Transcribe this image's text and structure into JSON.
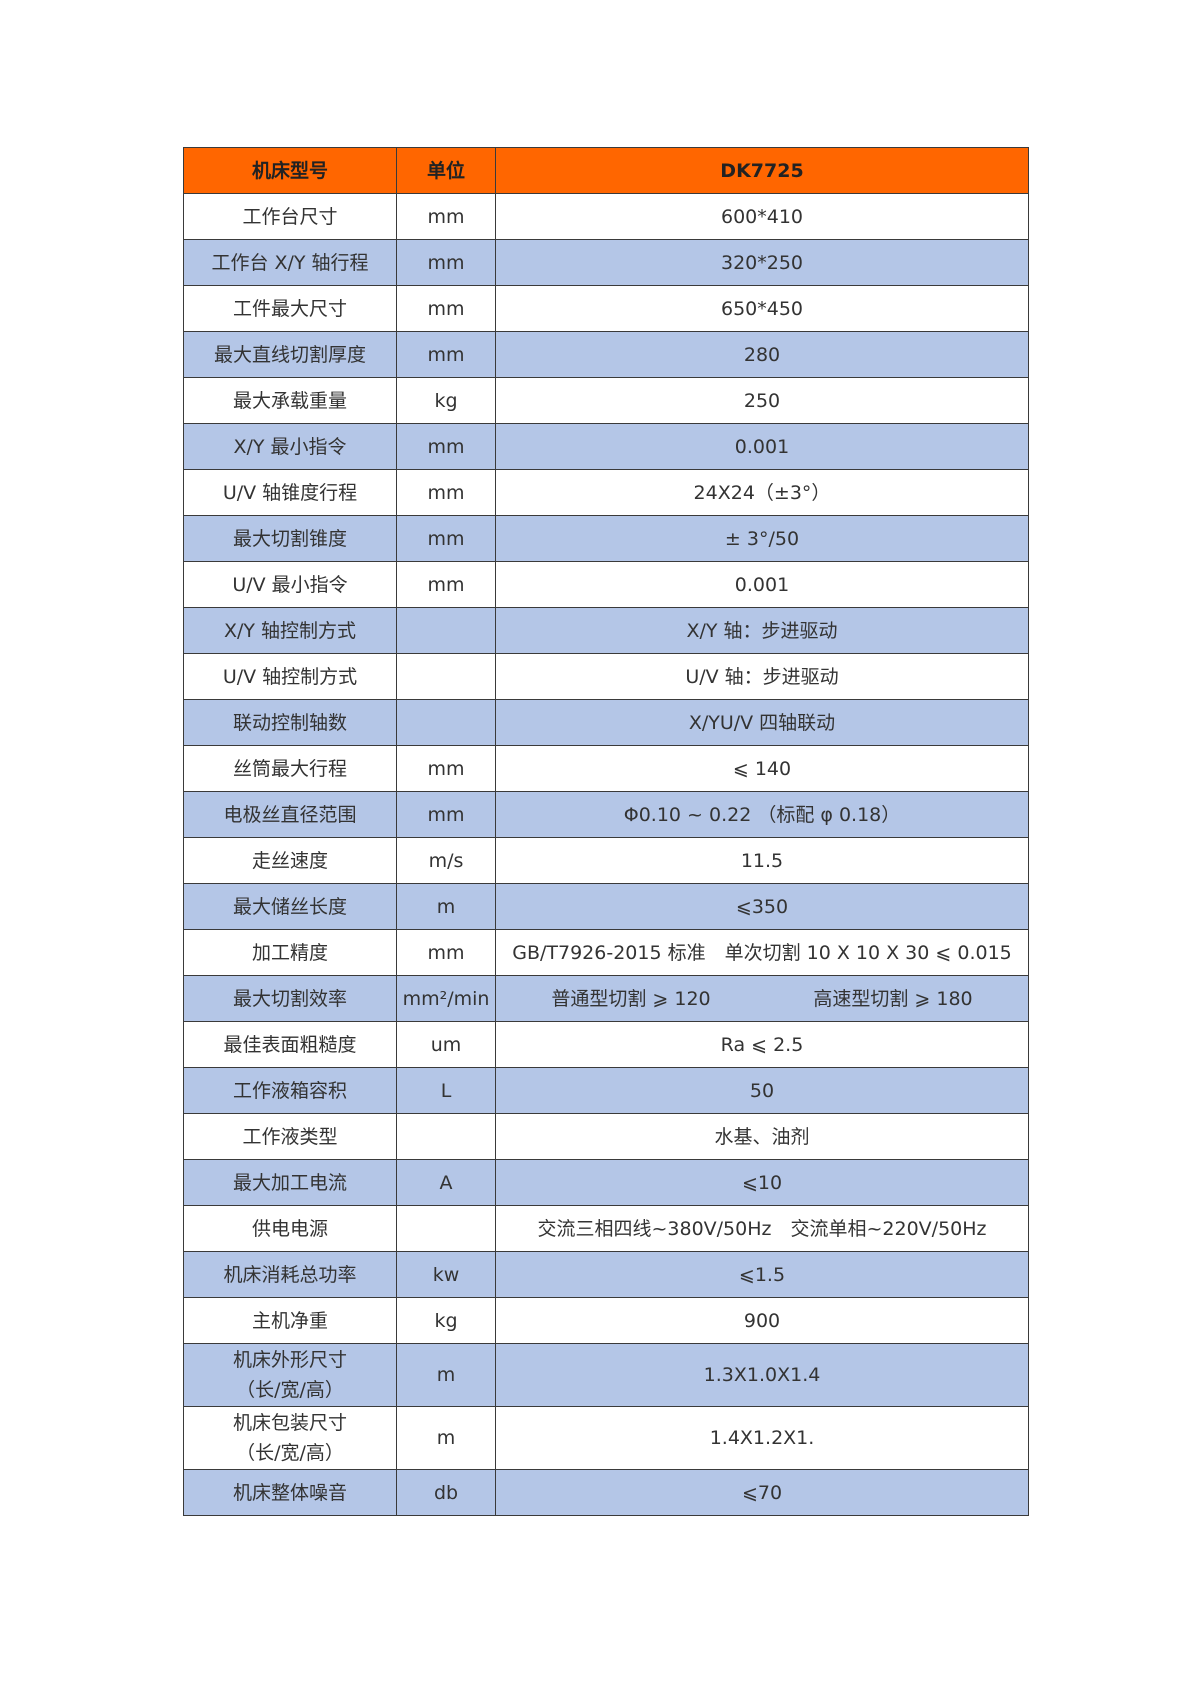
{
  "header": {
    "name": "机床型号",
    "unit": "单位",
    "value": "DK7725"
  },
  "colors": {
    "header_bg": "#ff6600",
    "alt_row_bg": "#b4c6e7",
    "row_bg": "#ffffff"
  },
  "rows": [
    {
      "name": "工作台尺寸",
      "unit": "mm",
      "value": "600*410"
    },
    {
      "name": "工作台 X/Y 轴行程",
      "unit": "mm",
      "value": "320*250"
    },
    {
      "name": "工件最大尺寸",
      "unit": "mm",
      "value": "650*450"
    },
    {
      "name": "最大直线切割厚度",
      "unit": "mm",
      "value": "280"
    },
    {
      "name": "最大承载重量",
      "unit": "kg",
      "value": "250"
    },
    {
      "name": "X/Y 最小指令",
      "unit": "mm",
      "value": "0.001"
    },
    {
      "name": "U/V 轴锥度行程",
      "unit": "mm",
      "value": "24X24（±3°）"
    },
    {
      "name": "最大切割锥度",
      "unit": "mm",
      "value": "± 3°/50"
    },
    {
      "name": "U/V 最小指令",
      "unit": "mm",
      "value": "0.001"
    },
    {
      "name": "X/Y 轴控制方式",
      "unit": "",
      "value": "X/Y 轴：步进驱动"
    },
    {
      "name": "U/V 轴控制方式",
      "unit": "",
      "value": "U/V 轴：步进驱动"
    },
    {
      "name": "联动控制轴数",
      "unit": "",
      "value": "X/YU/V 四轴联动"
    },
    {
      "name": "丝筒最大行程",
      "unit": "mm",
      "value": "⩽ 140"
    },
    {
      "name": "电极丝直径范围",
      "unit": "mm",
      "value": "Φ0.10 ~ 0.22 （标配 φ 0.18）"
    },
    {
      "name": "走丝速度",
      "unit": "m/s",
      "value": "11.5"
    },
    {
      "name": "最大储丝长度",
      "unit": "m",
      "value": "⩽350"
    },
    {
      "name": "加工精度",
      "unit": "mm",
      "value": "GB/T7926-2015 标准　单次切割 10 X 10 X 30 ⩽ 0.015"
    },
    {
      "name": "最大切割效率",
      "unit": "mm²/min",
      "value": "普通型切割 ⩾ 120",
      "value2": "高速型切割 ⩾ 180"
    },
    {
      "name": "最佳表面粗糙度",
      "unit": "um",
      "value": "Ra ⩽ 2.5"
    },
    {
      "name": "工作液箱容积",
      "unit": "L",
      "value": "50"
    },
    {
      "name": "工作液类型",
      "unit": "",
      "value": "水基、油剂"
    },
    {
      "name": "最大加工电流",
      "unit": "A",
      "value": "⩽10"
    },
    {
      "name": "供电电源",
      "unit": "",
      "value": "交流三相四线~380V/50Hz　交流单相~220V/50Hz"
    },
    {
      "name": "机床消耗总功率",
      "unit": "kw",
      "value": "⩽1.5"
    },
    {
      "name": "主机净重",
      "unit": "kg",
      "value": "900"
    },
    {
      "name": "机床外形尺寸",
      "name2": "（长/宽/高）",
      "unit": "m",
      "value": "1.3X1.0X1.4"
    },
    {
      "name": "机床包装尺寸",
      "name2": "（长/宽/高）",
      "unit": "m",
      "value": "1.4X1.2X1."
    },
    {
      "name": "机床整体噪音",
      "unit": "db",
      "value": "⩽70"
    }
  ]
}
